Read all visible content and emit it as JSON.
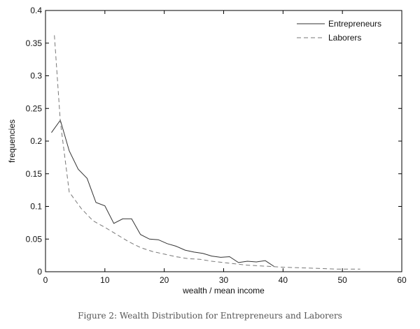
{
  "caption": "Figure 2: Wealth Distribution for Entrepreneurs and Laborers",
  "chart_data": {
    "type": "line",
    "title": "",
    "xlabel": "wealth / mean income",
    "ylabel": "frequencies",
    "xlim": [
      0,
      60
    ],
    "ylim": [
      0,
      0.4
    ],
    "xticks": [
      0,
      10,
      20,
      30,
      40,
      50,
      60
    ],
    "yticks": [
      0,
      0.05,
      0.1,
      0.15,
      0.2,
      0.25,
      0.3,
      0.35,
      0.4
    ],
    "xtick_labels": [
      "0",
      "10",
      "20",
      "30",
      "40",
      "50",
      "60"
    ],
    "ytick_labels": [
      "0",
      "0.05",
      "0.1",
      "0.15",
      "0.2",
      "0.25",
      "0.3",
      "0.35",
      "0.4"
    ],
    "grid": false,
    "legend_position": "top-right",
    "series": [
      {
        "name": "Entrepreneurs",
        "style": "solid",
        "color": "#333333",
        "x": [
          1,
          2.5,
          4,
          5.5,
          7,
          8.5,
          10,
          11.5,
          13,
          14.5,
          16,
          17.5,
          19,
          20.5,
          22,
          23.5,
          25,
          26.5,
          28,
          29.5,
          31,
          32.5,
          34,
          35.5,
          37,
          38.5
        ],
        "y": [
          0.213,
          0.232,
          0.185,
          0.157,
          0.143,
          0.106,
          0.101,
          0.074,
          0.081,
          0.081,
          0.057,
          0.05,
          0.049,
          0.043,
          0.039,
          0.033,
          0.03,
          0.028,
          0.024,
          0.022,
          0.023,
          0.014,
          0.016,
          0.015,
          0.017,
          0.008
        ]
      },
      {
        "name": "Laborers",
        "style": "dashed",
        "color": "#777777",
        "x": [
          1.5,
          2.5,
          4,
          6,
          8,
          10,
          12,
          14,
          16,
          18,
          20,
          22,
          24,
          26,
          28,
          30,
          32,
          34,
          36,
          38,
          40,
          43,
          46,
          49,
          53
        ],
        "y": [
          0.362,
          0.23,
          0.122,
          0.097,
          0.078,
          0.068,
          0.057,
          0.046,
          0.037,
          0.031,
          0.027,
          0.023,
          0.02,
          0.019,
          0.016,
          0.014,
          0.012,
          0.01,
          0.009,
          0.008,
          0.007,
          0.006,
          0.005,
          0.004,
          0.004
        ]
      }
    ]
  }
}
